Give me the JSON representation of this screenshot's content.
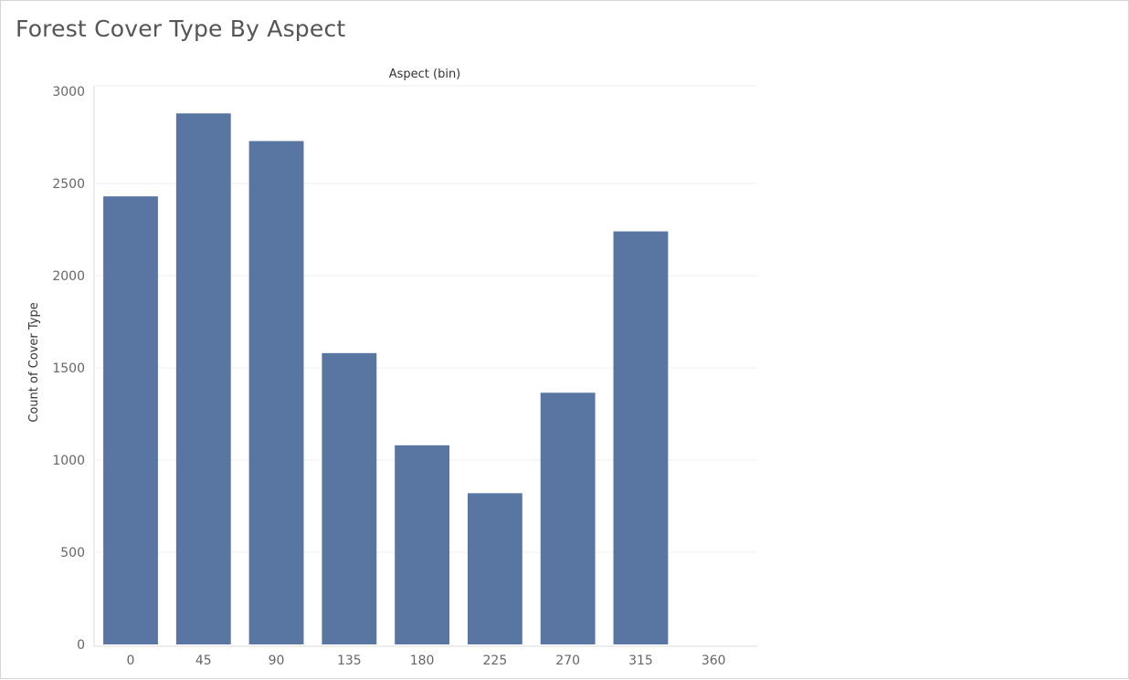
{
  "dashboard": {
    "title": "Forest Cover Type By Aspect"
  },
  "colors": {
    "bar": "#5976a2",
    "grid": "#efefef",
    "axis": "#d9d9d9"
  },
  "chart_data": {
    "type": "bar",
    "title": "Forest Cover Type By Aspect",
    "xlabel": "Aspect (bin)",
    "ylabel": "Count of Cover Type",
    "categories": [
      "0",
      "45",
      "90",
      "135",
      "180",
      "225",
      "270",
      "315",
      "360"
    ],
    "values": [
      2430,
      2880,
      2730,
      1580,
      1080,
      820,
      1365,
      2240,
      0
    ],
    "ylim": [
      0,
      3000
    ],
    "yticks": [
      "0",
      "500",
      "1000",
      "1500",
      "2000",
      "2500",
      "3000"
    ],
    "grid": true,
    "xlabel_position": "top"
  }
}
